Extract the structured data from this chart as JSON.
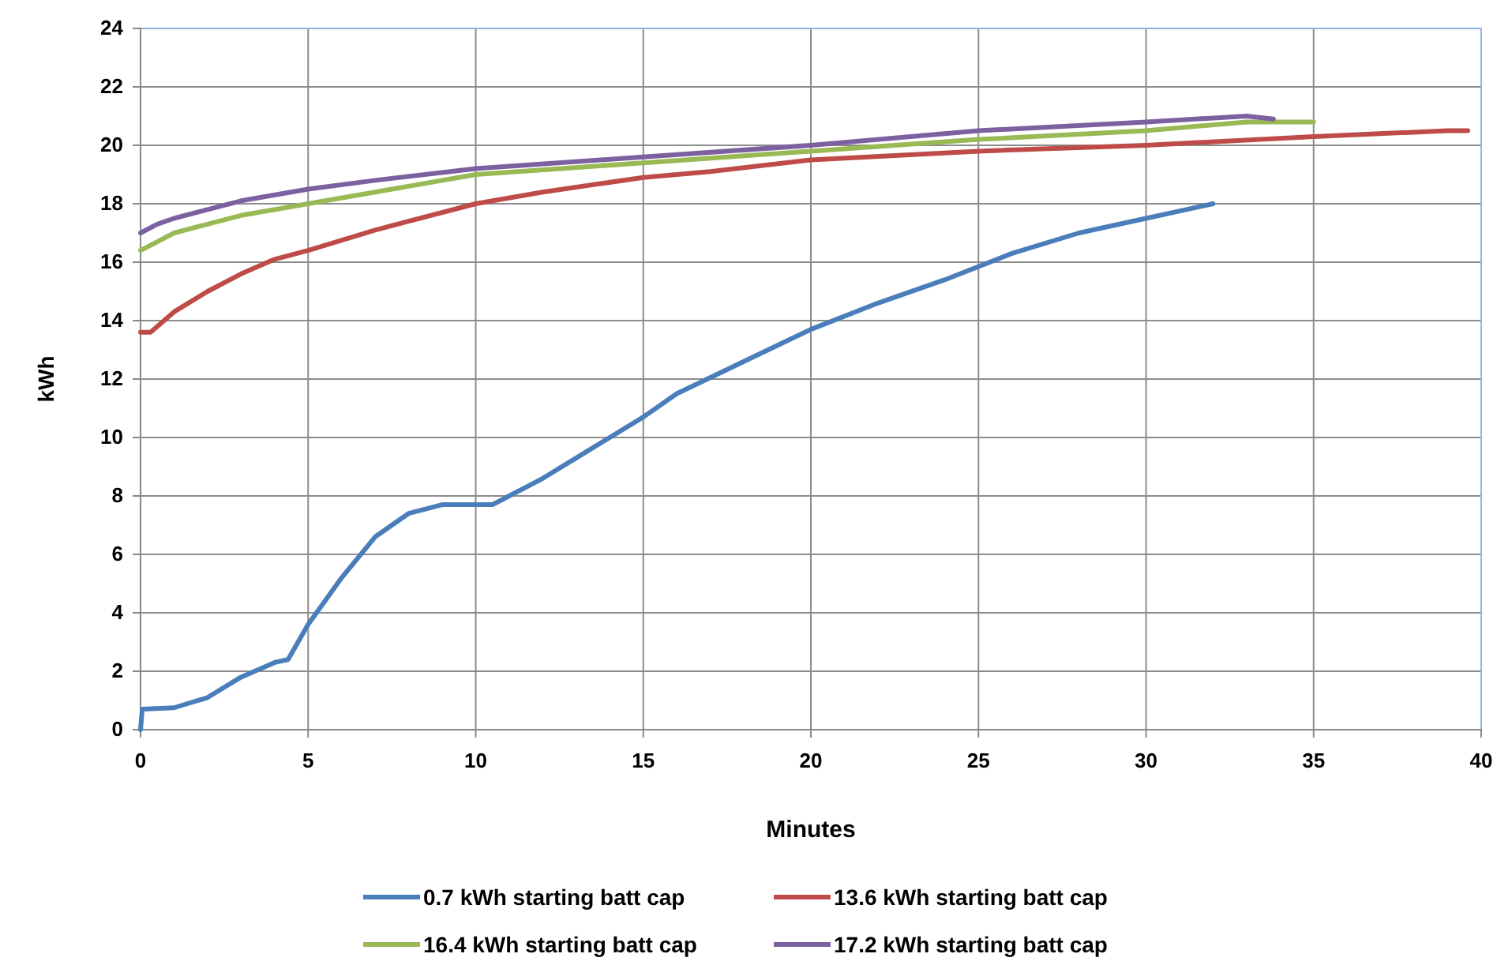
{
  "chart_data": {
    "type": "line",
    "xlabel": "Minutes",
    "ylabel": "kWh",
    "xlim": [
      0,
      40
    ],
    "xticks": [
      0,
      5,
      10,
      15,
      20,
      25,
      30,
      35,
      40
    ],
    "ylim": [
      0,
      24
    ],
    "yticks": [
      0,
      2,
      4,
      6,
      8,
      10,
      12,
      14,
      16,
      18,
      20,
      22,
      24
    ],
    "grid": true,
    "legend": "bottom",
    "marker": "none",
    "line_style": "solid",
    "series": [
      {
        "name": "0.7 kWh starting batt cap",
        "color": "#4a7ebb",
        "x": [
          0,
          0.05,
          1,
          2,
          3,
          4,
          4.4,
          5,
          6,
          7,
          8,
          9,
          10.5,
          11,
          12,
          13,
          14,
          15,
          16,
          18,
          20,
          22,
          24,
          26,
          28,
          30,
          32
        ],
        "values": [
          0,
          0.7,
          0.75,
          1.1,
          1.8,
          2.3,
          2.4,
          3.6,
          5.2,
          6.6,
          7.4,
          7.7,
          7.7,
          8.0,
          8.6,
          9.3,
          10.0,
          10.7,
          11.5,
          12.6,
          13.7,
          14.6,
          15.4,
          16.3,
          17.0,
          17.5,
          18.0
        ]
      },
      {
        "name": "13.6 kWh starting batt cap",
        "color": "#be4b48",
        "x": [
          0,
          0.3,
          1,
          2,
          3,
          4,
          5,
          7,
          10,
          12,
          15,
          17,
          20,
          25,
          30,
          35,
          39,
          39.6
        ],
        "values": [
          13.6,
          13.6,
          14.3,
          15.0,
          15.6,
          16.1,
          16.4,
          17.1,
          18.0,
          18.4,
          18.9,
          19.1,
          19.5,
          19.8,
          20.0,
          20.3,
          20.5,
          20.5
        ]
      },
      {
        "name": "16.4 kWh starting batt cap",
        "color": "#98b954",
        "x": [
          0,
          0.5,
          1,
          2,
          3,
          5,
          7,
          10,
          15,
          20,
          25,
          30,
          33,
          35
        ],
        "values": [
          16.4,
          16.7,
          17.0,
          17.3,
          17.6,
          18.0,
          18.4,
          19.0,
          19.4,
          19.8,
          20.2,
          20.5,
          20.8,
          20.8
        ]
      },
      {
        "name": "17.2 kWh starting batt cap",
        "color": "#7d60a0",
        "x": [
          0,
          0.5,
          1,
          2,
          3,
          5,
          7,
          10,
          15,
          20,
          25,
          30,
          33,
          33.8
        ],
        "values": [
          17.0,
          17.3,
          17.5,
          17.8,
          18.1,
          18.5,
          18.8,
          19.2,
          19.6,
          20.0,
          20.5,
          20.8,
          21.0,
          20.9
        ]
      }
    ]
  }
}
